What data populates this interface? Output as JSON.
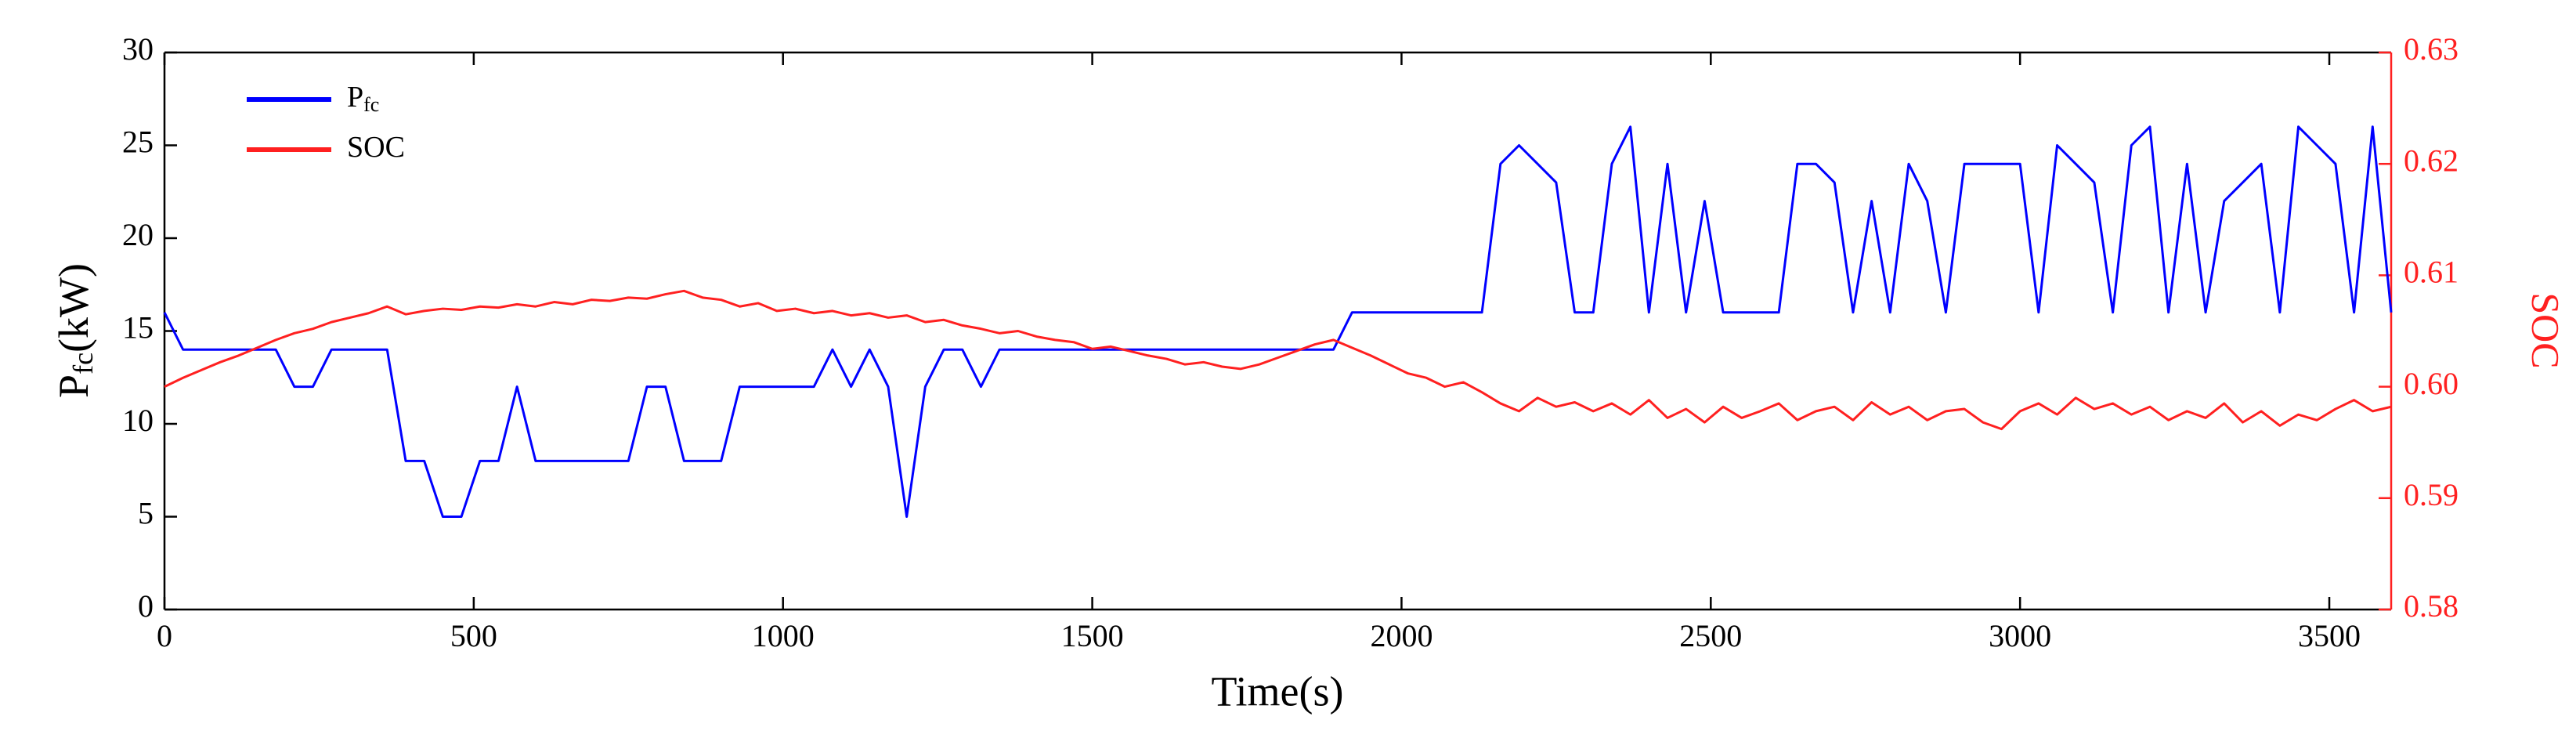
{
  "chart_data": {
    "type": "line",
    "xlabel": "Time(s)",
    "ylabel": {
      "main": "P",
      "sub": "fc",
      "unit": "(kW)"
    },
    "y2label": "SOC",
    "x": [
      0,
      30,
      60,
      90,
      120,
      150,
      180,
      210,
      240,
      270,
      300,
      330,
      360,
      390,
      420,
      450,
      480,
      510,
      540,
      570,
      600,
      630,
      660,
      690,
      720,
      750,
      780,
      810,
      840,
      870,
      900,
      930,
      960,
      990,
      1020,
      1050,
      1080,
      1110,
      1140,
      1170,
      1200,
      1230,
      1260,
      1290,
      1320,
      1350,
      1380,
      1410,
      1440,
      1470,
      1500,
      1530,
      1560,
      1590,
      1620,
      1650,
      1680,
      1710,
      1740,
      1770,
      1800,
      1830,
      1860,
      1890,
      1920,
      1950,
      1980,
      2010,
      2040,
      2070,
      2100,
      2130,
      2160,
      2190,
      2220,
      2250,
      2280,
      2310,
      2340,
      2370,
      2400,
      2430,
      2460,
      2490,
      2520,
      2550,
      2580,
      2610,
      2640,
      2670,
      2700,
      2730,
      2760,
      2790,
      2820,
      2850,
      2880,
      2910,
      2940,
      2970,
      3000,
      3030,
      3060,
      3090,
      3120,
      3150,
      3180,
      3210,
      3240,
      3270,
      3300,
      3330,
      3360,
      3390,
      3420,
      3450,
      3480,
      3510,
      3540,
      3570,
      3600
    ],
    "series": [
      {
        "name": "P",
        "name_sub": "fc",
        "color": "#0000ff",
        "axis": "y",
        "values": [
          16,
          14,
          14,
          14,
          14,
          14,
          14,
          12,
          12,
          14,
          14,
          14,
          14,
          8,
          8,
          5,
          5,
          8,
          8,
          12,
          8,
          8,
          8,
          8,
          8,
          8,
          12,
          12,
          8,
          8,
          8,
          12,
          12,
          12,
          12,
          12,
          14,
          12,
          14,
          12,
          5,
          12,
          14,
          14,
          12,
          14,
          14,
          14,
          14,
          14,
          14,
          14,
          14,
          14,
          14,
          14,
          14,
          14,
          14,
          14,
          14,
          14,
          14,
          14,
          16,
          16,
          16,
          16,
          16,
          16,
          16,
          16,
          24,
          25,
          24,
          23,
          16,
          16,
          24,
          26,
          16,
          24,
          16,
          22,
          16,
          16,
          16,
          16,
          24,
          24,
          23,
          16,
          22,
          16,
          24,
          22,
          16,
          24,
          24,
          24,
          24,
          16,
          25,
          24,
          23,
          16,
          25,
          26,
          16,
          24,
          16,
          22,
          23,
          24,
          16,
          26,
          25,
          24,
          16,
          26,
          16
        ]
      },
      {
        "name": "SOC",
        "color": "#ff2020",
        "axis": "y2",
        "values": [
          0.6,
          0.6008,
          0.6015,
          0.6022,
          0.6028,
          0.6035,
          0.6042,
          0.6048,
          0.6052,
          0.6058,
          0.6062,
          0.6066,
          0.6072,
          0.6065,
          0.6068,
          0.607,
          0.6069,
          0.6072,
          0.6071,
          0.6074,
          0.6072,
          0.6076,
          0.6074,
          0.6078,
          0.6077,
          0.608,
          0.6079,
          0.6083,
          0.6086,
          0.608,
          0.6078,
          0.6072,
          0.6075,
          0.6068,
          0.607,
          0.6066,
          0.6068,
          0.6064,
          0.6066,
          0.6062,
          0.6064,
          0.6058,
          0.606,
          0.6055,
          0.6052,
          0.6048,
          0.605,
          0.6045,
          0.6042,
          0.604,
          0.6034,
          0.6036,
          0.6032,
          0.6028,
          0.6025,
          0.602,
          0.6022,
          0.6018,
          0.6016,
          0.602,
          0.6026,
          0.6032,
          0.6038,
          0.6042,
          0.6035,
          0.6028,
          0.602,
          0.6012,
          0.6008,
          0.6,
          0.6004,
          0.5995,
          0.5985,
          0.5978,
          0.599,
          0.5982,
          0.5986,
          0.5978,
          0.5985,
          0.5975,
          0.5988,
          0.5972,
          0.598,
          0.5968,
          0.5982,
          0.5972,
          0.5978,
          0.5985,
          0.597,
          0.5978,
          0.5982,
          0.597,
          0.5986,
          0.5975,
          0.5982,
          0.597,
          0.5978,
          0.598,
          0.5968,
          0.5962,
          0.5978,
          0.5985,
          0.5975,
          0.599,
          0.598,
          0.5985,
          0.5975,
          0.5982,
          0.597,
          0.5978,
          0.5972,
          0.5985,
          0.5968,
          0.5978,
          0.5965,
          0.5975,
          0.597,
          0.598,
          0.5988,
          0.5978,
          0.5982
        ]
      }
    ],
    "xlim": [
      0,
      3600
    ],
    "xticks": [
      0,
      500,
      1000,
      1500,
      2000,
      2500,
      3000,
      3500
    ],
    "ylim": [
      0,
      30
    ],
    "yticks": [
      0,
      5,
      10,
      15,
      20,
      25,
      30
    ],
    "y2lim": [
      0.58,
      0.63
    ],
    "y2ticks": [
      0.58,
      0.59,
      {
        "value": 0.6,
        "label": "0.60"
      },
      0.61,
      0.62,
      0.63
    ],
    "y2color": "#ff2020",
    "legend": "upper left",
    "grid": false
  }
}
